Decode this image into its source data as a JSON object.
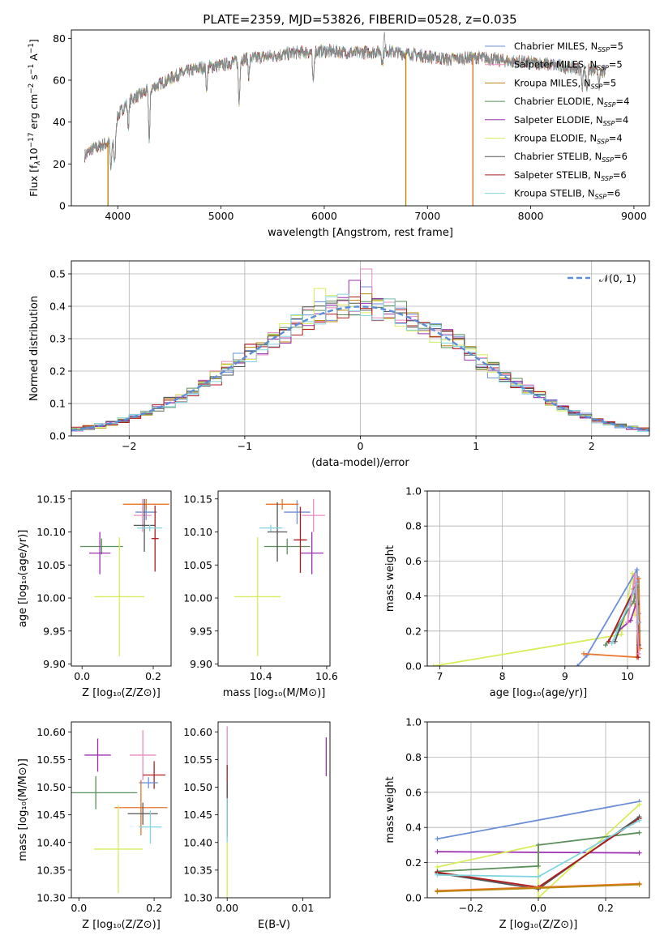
{
  "title": "PLATE=2359, MJD=53826, FIBERID=0528, z=0.035",
  "colors": {
    "Chabrier MILES": "#6b8fd6",
    "Salpeter MILES": "#e88bc0",
    "Kroupa MILES": "#b8860b",
    "Chabrier ELODIE": "#5b8f5b",
    "Salpeter ELODIE": "#9b30b0",
    "Kroupa ELODIE": "#d9ec5a",
    "Chabrier STELIB": "#555555",
    "Salpeter STELIB": "#b01c1c",
    "Kroupa STELIB": "#80d4e0",
    "orange": "#e8742a",
    "normal_curve": "#5b8dd8",
    "grid": "#b0b0b0"
  },
  "chart_data": [
    {
      "id": "spectrum",
      "type": "line",
      "xlabel": "wavelength [Angstrom, rest frame]",
      "ylabel_parts": [
        "Flux [f",
        "λ",
        "10",
        "−17",
        " erg cm",
        "−2",
        " s",
        "−1",
        " A",
        "−1",
        "]"
      ],
      "xlim": [
        3550,
        9150
      ],
      "ylim": [
        0,
        84
      ],
      "xticks": [
        4000,
        5000,
        6000,
        7000,
        8000,
        9000
      ],
      "yticks": [
        0,
        20,
        40,
        60,
        80
      ],
      "grid": false,
      "legend_position": "right",
      "legend": [
        {
          "label": "Chabrier MILES, N",
          "sub": "SSP",
          "suffix": "=5",
          "color_key": "Chabrier MILES"
        },
        {
          "label": "Salpeter MILES, N",
          "sub": "SSP",
          "suffix": "=5",
          "color_key": "Salpeter MILES"
        },
        {
          "label": "Kroupa MILES, N",
          "sub": "SSP",
          "suffix": "=5",
          "color_key": "Kroupa MILES"
        },
        {
          "label": "Chabrier ELODIE, N",
          "sub": "SSP",
          "suffix": "=4",
          "color_key": "Chabrier ELODIE"
        },
        {
          "label": "Salpeter ELODIE, N",
          "sub": "SSP",
          "suffix": "=4",
          "color_key": "Salpeter ELODIE"
        },
        {
          "label": "Kroupa ELODIE, N",
          "sub": "SSP",
          "suffix": "=4",
          "color_key": "Kroupa ELODIE"
        },
        {
          "label": "Chabrier STELIB, N",
          "sub": "SSP",
          "suffix": "=6",
          "color_key": "Chabrier STELIB"
        },
        {
          "label": "Salpeter STELIB, N",
          "sub": "SSP",
          "suffix": "=6",
          "color_key": "Salpeter STELIB"
        },
        {
          "label": "Kroupa STELIB, N",
          "sub": "SSP",
          "suffix": "=6",
          "color_key": "Kroupa STELIB"
        }
      ],
      "continuum_x": [
        3680,
        3750,
        3850,
        3950,
        4000,
        4100,
        4250,
        4400,
        4600,
        4800,
        5000,
        5200,
        5400,
        5700,
        6000,
        6300,
        6600,
        6900,
        7200,
        7500,
        7800,
        8100,
        8400,
        8700
      ],
      "continuum_y": [
        24,
        27,
        29,
        31,
        43,
        50,
        54,
        58,
        63,
        66,
        67,
        70,
        71,
        73,
        74,
        73,
        74,
        72,
        70,
        71,
        69,
        68,
        66,
        64
      ],
      "dips": [
        {
          "x": 3934,
          "y": 17
        },
        {
          "x": 3969,
          "y": 20
        },
        {
          "x": 4102,
          "y": 38
        },
        {
          "x": 4305,
          "y": 32
        },
        {
          "x": 4861,
          "y": 56
        },
        {
          "x": 5175,
          "y": 49
        },
        {
          "x": 5270,
          "y": 62
        },
        {
          "x": 5893,
          "y": 58
        },
        {
          "x": 6563,
          "y": 68
        },
        {
          "x": 8500,
          "y": 58
        },
        {
          "x": 8544,
          "y": 56
        },
        {
          "x": 8665,
          "y": 58
        }
      ],
      "emission": [
        {
          "x": 6580,
          "y": 84
        }
      ],
      "drops": [
        {
          "x": 3905,
          "color_key": "Kroupa MILES"
        },
        {
          "x": 6790,
          "color_key": "Kroupa MILES"
        },
        {
          "x": 7440,
          "color_key": "orange"
        }
      ]
    },
    {
      "id": "residuals",
      "type": "step-histogram",
      "xlabel": "(data-model)/error",
      "ylabel": "Normed distribution",
      "xlim": [
        -2.5,
        2.5
      ],
      "ylim": [
        0,
        0.54
      ],
      "xticks": [
        -2,
        -1,
        0,
        1,
        2
      ],
      "yticks": [
        0.0,
        0.1,
        0.2,
        0.3,
        0.4,
        0.5
      ],
      "grid": true,
      "bin_width": 0.1,
      "legend_position": "top-right",
      "legend_label": "𝒩(0, 1)",
      "peak_values": [
        {
          "series": "Chabrier MILES",
          "x": 0.05,
          "y": 0.46
        },
        {
          "series": "Salpeter MILES",
          "x": 0.05,
          "y": 0.515
        },
        {
          "series": "Salpeter ELODIE",
          "x": -0.05,
          "y": 0.48
        },
        {
          "series": "Kroupa ELODIE",
          "x": -0.35,
          "y": 0.455
        }
      ]
    },
    {
      "id": "age_vs_Z",
      "type": "errorbar",
      "xlabel": "Z [log₁₀(Z/Z⊙)]",
      "ylabel": "age  [log₁₀(age/yr)]",
      "xlim": [
        -0.03,
        0.25
      ],
      "ylim": [
        9.897,
        10.162
      ],
      "xticks": [
        0.0,
        0.2
      ],
      "yticks": [
        9.9,
        9.95,
        10.0,
        10.05,
        10.1,
        10.15
      ],
      "points": [
        {
          "series": "Chabrier MILES",
          "x": 0.18,
          "xerr": 0.03,
          "y": 10.13,
          "yerr": 0.012
        },
        {
          "series": "Salpeter MILES",
          "x": 0.17,
          "xerr": 0.025,
          "y": 10.125,
          "yerr": 0.025
        },
        {
          "series": "orange",
          "x": 0.18,
          "xerr": 0.065,
          "y": 10.142,
          "yerr": 0.008
        },
        {
          "series": "Chabrier ELODIE",
          "x": 0.055,
          "xerr": 0.06,
          "y": 10.078,
          "yerr": 0.012
        },
        {
          "series": "Salpeter ELODIE",
          "x": 0.05,
          "xerr": 0.03,
          "y": 10.068,
          "yerr": 0.032
        },
        {
          "series": "Kroupa ELODIE",
          "x": 0.105,
          "xerr": 0.07,
          "y": 10.002,
          "yerr": 0.09
        },
        {
          "series": "Chabrier STELIB",
          "x": 0.175,
          "xerr": 0.03,
          "y": 10.11,
          "yerr": 0.04
        },
        {
          "series": "Salpeter STELIB",
          "x": 0.205,
          "xerr": 0.01,
          "y": 10.09,
          "yerr": 0.05
        },
        {
          "series": "Kroupa STELIB",
          "x": 0.19,
          "xerr": 0.035,
          "y": 10.106,
          "yerr": 0.005
        }
      ]
    },
    {
      "id": "age_vs_mass",
      "type": "errorbar",
      "xlabel": "mass [log₁₀(M/M⊙)]",
      "ylabel": "",
      "xlim": [
        10.27,
        10.61
      ],
      "ylim": [
        9.897,
        10.162
      ],
      "xticks": [
        10.4,
        10.6
      ],
      "yticks": [
        9.9,
        9.95,
        10.0,
        10.05,
        10.1,
        10.15
      ],
      "points": [
        {
          "series": "Chabrier MILES",
          "x": 10.51,
          "xerr": 0.04,
          "y": 10.13,
          "yerr": 0.018
        },
        {
          "series": "Salpeter MILES",
          "x": 10.56,
          "xerr": 0.035,
          "y": 10.125,
          "yerr": 0.025
        },
        {
          "series": "orange",
          "x": 10.465,
          "xerr": 0.05,
          "y": 10.142,
          "yerr": 0.008
        },
        {
          "series": "Chabrier ELODIE",
          "x": 10.48,
          "xerr": 0.07,
          "y": 10.078,
          "yerr": 0.012
        },
        {
          "series": "Salpeter ELODIE",
          "x": 10.555,
          "xerr": 0.035,
          "y": 10.068,
          "yerr": 0.032
        },
        {
          "series": "Kroupa ELODIE",
          "x": 10.39,
          "xerr": 0.07,
          "y": 10.002,
          "yerr": 0.09
        },
        {
          "series": "Chabrier STELIB",
          "x": 10.45,
          "xerr": 0.03,
          "y": 10.1,
          "yerr": 0.045
        },
        {
          "series": "Salpeter STELIB",
          "x": 10.52,
          "xerr": 0.02,
          "y": 10.088,
          "yerr": 0.05
        },
        {
          "series": "Kroupa STELIB",
          "x": 10.43,
          "xerr": 0.035,
          "y": 10.106,
          "yerr": 0.005
        }
      ]
    },
    {
      "id": "massweight_vs_age",
      "type": "line",
      "xlabel": "age  [log₁₀(age/yr)]",
      "ylabel": "mass weight",
      "xlim": [
        6.8,
        10.35
      ],
      "ylim": [
        0.0,
        1.0
      ],
      "xticks": [
        7,
        8,
        9,
        10
      ],
      "yticks": [
        0.0,
        0.2,
        0.4,
        0.6,
        0.8,
        1.0
      ],
      "grid": true,
      "series": [
        {
          "name": "Kroupa ELODIE",
          "points": [
            [
              6.9,
              0.0
            ],
            [
              9.9,
              0.18
            ],
            [
              10.08,
              0.53
            ],
            [
              10.12,
              0.29
            ]
          ]
        },
        {
          "name": "Chabrier MILES",
          "points": [
            [
              9.2,
              0.0
            ],
            [
              9.35,
              0.06
            ],
            [
              10.15,
              0.55
            ],
            [
              10.18,
              0.3
            ]
          ]
        },
        {
          "name": "orange",
          "points": [
            [
              9.3,
              0.07
            ],
            [
              10.15,
              0.05
            ],
            [
              10.18,
              0.5
            ],
            [
              10.2,
              0.1
            ]
          ]
        },
        {
          "name": "Salpeter ELODIE",
          "points": [
            [
              9.85,
              0.2
            ],
            [
              10.05,
              0.26
            ],
            [
              10.15,
              0.37
            ],
            [
              10.18,
              0.25
            ]
          ]
        },
        {
          "name": "Chabrier ELODIE",
          "points": [
            [
              9.65,
              0.12
            ],
            [
              10.1,
              0.37
            ],
            [
              10.15,
              0.45
            ],
            [
              10.18,
              0.2
            ]
          ]
        },
        {
          "name": "Salpeter STELIB",
          "points": [
            [
              9.7,
              0.14
            ],
            [
              10.12,
              0.45
            ],
            [
              10.15,
              0.35
            ],
            [
              10.17,
              0.05
            ]
          ]
        },
        {
          "name": "Chabrier STELIB",
          "points": [
            [
              9.8,
              0.14
            ],
            [
              10.1,
              0.44
            ],
            [
              10.15,
              0.36
            ],
            [
              10.18,
              0.12
            ]
          ]
        },
        {
          "name": "Kroupa STELIB",
          "points": [
            [
              9.75,
              0.13
            ],
            [
              10.1,
              0.42
            ],
            [
              10.14,
              0.47
            ],
            [
              10.17,
              0.25
            ]
          ]
        },
        {
          "name": "Salpeter MILES",
          "points": [
            [
              10.0,
              0.25
            ],
            [
              10.12,
              0.52
            ],
            [
              10.18,
              0.07
            ]
          ]
        }
      ]
    },
    {
      "id": "mass_vs_Z",
      "type": "errorbar",
      "xlabel": "Z [log₁₀(Z/Z⊙)]",
      "ylabel": "mass [log₁₀(M/M⊙)]",
      "xlim": [
        -0.02,
        0.245
      ],
      "ylim": [
        10.3,
        10.618
      ],
      "xticks": [
        0.0,
        0.2
      ],
      "yticks": [
        10.3,
        10.35,
        10.4,
        10.45,
        10.5,
        10.55,
        10.6
      ],
      "points": [
        {
          "series": "Salpeter ELODIE",
          "x": 0.05,
          "xerr": 0.035,
          "y": 10.558,
          "yerr": 0.03
        },
        {
          "series": "Salpeter MILES",
          "x": 0.17,
          "xerr": 0.035,
          "y": 10.558,
          "yerr": 0.045
        },
        {
          "series": "Salpeter STELIB",
          "x": 0.2,
          "xerr": 0.03,
          "y": 10.522,
          "yerr": 0.025
        },
        {
          "series": "Chabrier MILES",
          "x": 0.185,
          "xerr": 0.025,
          "y": 10.508,
          "yerr": 0.01
        },
        {
          "series": "Chabrier ELODIE",
          "x": 0.045,
          "xerr": 0.11,
          "y": 10.49,
          "yerr": 0.03
        },
        {
          "series": "orange",
          "x": 0.165,
          "xerr": 0.07,
          "y": 10.463,
          "yerr": 0.05
        },
        {
          "series": "Chabrier STELIB",
          "x": 0.17,
          "xerr": 0.04,
          "y": 10.452,
          "yerr": 0.02
        },
        {
          "series": "Kroupa STELIB",
          "x": 0.19,
          "xerr": 0.03,
          "y": 10.428,
          "yerr": 0.03
        },
        {
          "series": "Kroupa ELODIE",
          "x": 0.105,
          "xerr": 0.065,
          "y": 10.388,
          "yerr": 0.08
        }
      ]
    },
    {
      "id": "mass_vs_EBV",
      "type": "errorbar",
      "xlabel": "E(B-V)",
      "ylabel": "",
      "xlim": [
        -0.0012,
        0.0136
      ],
      "ylim": [
        10.3,
        10.618
      ],
      "xticks": [
        0.0,
        0.01
      ],
      "yticks": [
        10.3,
        10.35,
        10.4,
        10.45,
        10.5,
        10.55,
        10.6
      ],
      "points": [
        {
          "series": "Salpeter MILES",
          "x": 0.0,
          "xerr": 0,
          "y": 10.57,
          "yerr": 0.04
        },
        {
          "series": "Salpeter STELIB",
          "x": 0.0,
          "xerr": 0,
          "y": 10.5,
          "yerr": 0.04
        },
        {
          "series": "Chabrier STELIB",
          "x": 0.0,
          "xerr": 0,
          "y": 10.46,
          "yerr": 0.05
        },
        {
          "series": "Kroupa STELIB",
          "x": 0.0,
          "xerr": 0,
          "y": 10.44,
          "yerr": 0.04
        },
        {
          "series": "Kroupa ELODIE",
          "x": 0.0,
          "xerr": 0,
          "y": 10.35,
          "yerr": 0.05
        },
        {
          "series": "Salpeter ELODIE",
          "x": 0.0131,
          "xerr": 0,
          "y": 10.555,
          "yerr": 0.035
        }
      ]
    },
    {
      "id": "massweight_vs_Z",
      "type": "line",
      "xlabel": "Z [log₁₀(Z/Z⊙)]",
      "ylabel": "mass weight",
      "xlim": [
        -0.33,
        0.33
      ],
      "ylim": [
        0.0,
        1.0
      ],
      "xticks": [
        -0.2,
        0.0,
        0.2
      ],
      "yticks": [
        0.0,
        0.2,
        0.4,
        0.6,
        0.8,
        1.0
      ],
      "grid": true,
      "series": [
        {
          "name": "Chabrier MILES",
          "points": [
            [
              -0.3,
              0.335
            ],
            [
              0.3,
              0.548
            ]
          ]
        },
        {
          "name": "Salpeter ELODIE",
          "points": [
            [
              -0.3,
              0.262
            ],
            [
              0.3,
              0.255
            ]
          ]
        },
        {
          "name": "Kroupa ELODIE",
          "points": [
            [
              -0.3,
              0.175
            ],
            [
              0.0,
              0.3
            ],
            [
              0.0,
              0.0
            ],
            [
              0.3,
              0.53
            ]
          ]
        },
        {
          "name": "Chabrier ELODIE",
          "points": [
            [
              -0.3,
              0.15
            ],
            [
              0.0,
              0.18
            ],
            [
              0.0,
              0.3
            ],
            [
              0.3,
              0.37
            ]
          ]
        },
        {
          "name": "Chabrier STELIB",
          "points": [
            [
              -0.3,
              0.14
            ],
            [
              0.0,
              0.05
            ],
            [
              0.3,
              0.46
            ]
          ]
        },
        {
          "name": "Salpeter STELIB",
          "points": [
            [
              -0.3,
              0.145
            ],
            [
              0.0,
              0.06
            ],
            [
              0.3,
              0.45
            ]
          ]
        },
        {
          "name": "Kroupa STELIB",
          "points": [
            [
              -0.3,
              0.13
            ],
            [
              0.0,
              0.12
            ],
            [
              0.3,
              0.44
            ]
          ]
        },
        {
          "name": "orange",
          "points": [
            [
              -0.3,
              0.04
            ],
            [
              0.3,
              0.08
            ]
          ]
        },
        {
          "name": "Kroupa MILES",
          "points": [
            [
              -0.3,
              0.035
            ],
            [
              0.3,
              0.075
            ]
          ]
        }
      ]
    }
  ]
}
